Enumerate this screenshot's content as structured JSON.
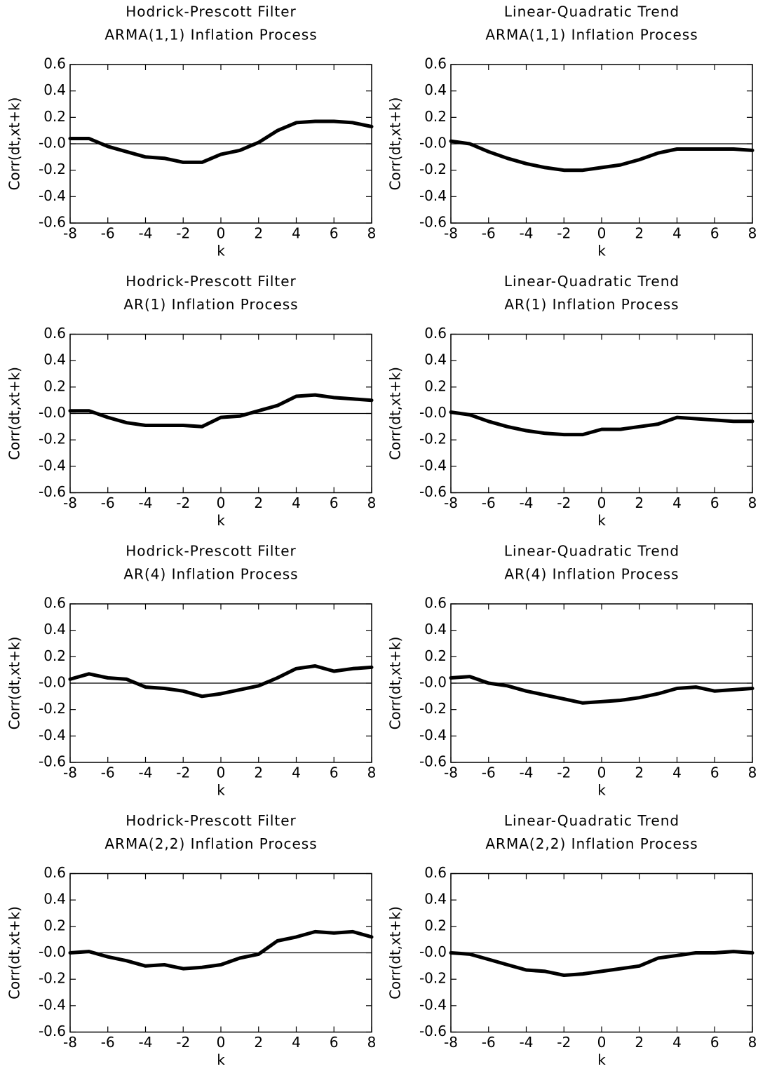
{
  "chart_data": [
    {
      "type": "line",
      "title": "Hodrick-Prescott Filter",
      "subtitle": "ARMA(1,1) Inflation Process",
      "xlabel": "k",
      "ylabel": "Corr(dt,xt+k)",
      "color": "#000000",
      "x": [
        -8,
        -7,
        -6,
        -5,
        -4,
        -3,
        -2,
        -1,
        0,
        1,
        2,
        3,
        4,
        5,
        6,
        7,
        8
      ],
      "values": [
        0.04,
        0.04,
        -0.02,
        -0.06,
        -0.1,
        -0.11,
        -0.14,
        -0.14,
        -0.08,
        -0.05,
        0.01,
        0.1,
        0.16,
        0.17,
        0.17,
        0.16,
        0.13
      ],
      "xlim": [
        -8,
        8
      ],
      "xticks": [
        -8,
        -6,
        -4,
        -2,
        0,
        2,
        4,
        6,
        8
      ],
      "ylim": [
        -0.6,
        0.6
      ],
      "yticks": [
        0.6,
        0.4,
        0.2,
        {
          "value": 0,
          "label": "-0.0"
        },
        -0.2,
        -0.4,
        -0.6
      ]
    },
    {
      "type": "line",
      "title": "Linear-Quadratic Trend",
      "subtitle": "ARMA(1,1) Inflation Process",
      "xlabel": "k",
      "ylabel": "Corr(dt,xt+k)",
      "color": "#000000",
      "x": [
        -8,
        -7,
        -6,
        -5,
        -4,
        -3,
        -2,
        -1,
        0,
        1,
        2,
        3,
        4,
        5,
        6,
        7,
        8
      ],
      "values": [
        0.02,
        0.0,
        -0.06,
        -0.11,
        -0.15,
        -0.18,
        -0.2,
        -0.2,
        -0.18,
        -0.16,
        -0.12,
        -0.07,
        -0.04,
        -0.04,
        -0.04,
        -0.04,
        -0.05
      ],
      "xlim": [
        -8,
        8
      ],
      "xticks": [
        -8,
        -6,
        -4,
        -2,
        0,
        2,
        4,
        6,
        8
      ],
      "ylim": [
        -0.6,
        0.6
      ],
      "yticks": [
        0.6,
        0.4,
        0.2,
        {
          "value": 0,
          "label": "-0.0"
        },
        -0.2,
        -0.4,
        -0.6
      ]
    },
    {
      "type": "line",
      "title": "Hodrick-Prescott Filter",
      "subtitle": "AR(1) Inflation Process",
      "xlabel": "k",
      "ylabel": "Corr(dt,xt+k)",
      "color": "#000000",
      "x": [
        -8,
        -7,
        -6,
        -5,
        -4,
        -3,
        -2,
        -1,
        0,
        1,
        2,
        3,
        4,
        5,
        6,
        7,
        8
      ],
      "values": [
        0.02,
        0.02,
        -0.03,
        -0.07,
        -0.09,
        -0.09,
        -0.09,
        -0.1,
        -0.03,
        -0.02,
        0.02,
        0.06,
        0.13,
        0.14,
        0.12,
        0.11,
        0.1
      ],
      "xlim": [
        -8,
        8
      ],
      "xticks": [
        -8,
        -6,
        -4,
        -2,
        0,
        2,
        4,
        6,
        8
      ],
      "ylim": [
        -0.6,
        0.6
      ],
      "yticks": [
        0.6,
        0.4,
        0.2,
        {
          "value": 0,
          "label": "-0.0"
        },
        -0.2,
        -0.4,
        -0.6
      ]
    },
    {
      "type": "line",
      "title": "Linear-Quadratic Trend",
      "subtitle": "AR(1) Inflation Process",
      "xlabel": "k",
      "ylabel": "Corr(dt,xt+k)",
      "color": "#000000",
      "x": [
        -8,
        -7,
        -6,
        -5,
        -4,
        -3,
        -2,
        -1,
        0,
        1,
        2,
        3,
        4,
        5,
        6,
        7,
        8
      ],
      "values": [
        0.01,
        -0.01,
        -0.06,
        -0.1,
        -0.13,
        -0.15,
        -0.16,
        -0.16,
        -0.12,
        -0.12,
        -0.1,
        -0.08,
        -0.03,
        -0.04,
        -0.05,
        -0.06,
        -0.06
      ],
      "xlim": [
        -8,
        8
      ],
      "xticks": [
        -8,
        -6,
        -4,
        -2,
        0,
        2,
        4,
        6,
        8
      ],
      "ylim": [
        -0.6,
        0.6
      ],
      "yticks": [
        0.6,
        0.4,
        0.2,
        {
          "value": 0,
          "label": "-0.0"
        },
        -0.2,
        -0.4,
        -0.6
      ]
    },
    {
      "type": "line",
      "title": "Hodrick-Prescott Filter",
      "subtitle": "AR(4) Inflation Process",
      "xlabel": "k",
      "ylabel": "Corr(dt,xt+k)",
      "color": "#000000",
      "x": [
        -8,
        -7,
        -6,
        -5,
        -4,
        -3,
        -2,
        -1,
        0,
        1,
        2,
        3,
        4,
        5,
        6,
        7,
        8
      ],
      "values": [
        0.03,
        0.07,
        0.04,
        0.03,
        -0.03,
        -0.04,
        -0.06,
        -0.1,
        -0.08,
        -0.05,
        -0.02,
        0.04,
        0.11,
        0.13,
        0.09,
        0.11,
        0.12
      ],
      "xlim": [
        -8,
        8
      ],
      "xticks": [
        -8,
        -6,
        -4,
        -2,
        0,
        2,
        4,
        6,
        8
      ],
      "ylim": [
        -0.6,
        0.6
      ],
      "yticks": [
        0.6,
        0.4,
        0.2,
        {
          "value": 0,
          "label": "-0.0"
        },
        -0.2,
        -0.4,
        -0.6
      ]
    },
    {
      "type": "line",
      "title": "Linear-Quadratic Trend",
      "subtitle": "AR(4) Inflation Process",
      "xlabel": "k",
      "ylabel": "Corr(dt,xt+k)",
      "color": "#000000",
      "x": [
        -8,
        -7,
        -6,
        -5,
        -4,
        -3,
        -2,
        -1,
        0,
        1,
        2,
        3,
        4,
        5,
        6,
        7,
        8
      ],
      "values": [
        0.04,
        0.05,
        0.0,
        -0.02,
        -0.06,
        -0.09,
        -0.12,
        -0.15,
        -0.14,
        -0.13,
        -0.11,
        -0.08,
        -0.04,
        -0.03,
        -0.06,
        -0.05,
        -0.04
      ],
      "xlim": [
        -8,
        8
      ],
      "xticks": [
        -8,
        -6,
        -4,
        -2,
        0,
        2,
        4,
        6,
        8
      ],
      "ylim": [
        -0.6,
        0.6
      ],
      "yticks": [
        0.6,
        0.4,
        0.2,
        {
          "value": 0,
          "label": "-0.0"
        },
        -0.2,
        -0.4,
        -0.6
      ]
    },
    {
      "type": "line",
      "title": "Hodrick-Prescott Filter",
      "subtitle": "ARMA(2,2) Inflation Process",
      "xlabel": "k",
      "ylabel": "Corr(dt,xt+k)",
      "color": "#000000",
      "x": [
        -8,
        -7,
        -6,
        -5,
        -4,
        -3,
        -2,
        -1,
        0,
        1,
        2,
        3,
        4,
        5,
        6,
        7,
        8
      ],
      "values": [
        0.0,
        0.01,
        -0.03,
        -0.06,
        -0.1,
        -0.09,
        -0.12,
        -0.11,
        -0.09,
        -0.04,
        -0.01,
        0.09,
        0.12,
        0.16,
        0.15,
        0.16,
        0.12
      ],
      "xlim": [
        -8,
        8
      ],
      "xticks": [
        -8,
        -6,
        -4,
        -2,
        0,
        2,
        4,
        6,
        8
      ],
      "ylim": [
        -0.6,
        0.6
      ],
      "yticks": [
        0.6,
        0.4,
        0.2,
        {
          "value": 0,
          "label": "-0.0"
        },
        -0.2,
        -0.4,
        -0.6
      ]
    },
    {
      "type": "line",
      "title": "Linear-Quadratic Trend",
      "subtitle": "ARMA(2,2) Inflation Process",
      "xlabel": "k",
      "ylabel": "Corr(dt,xt+k)",
      "color": "#000000",
      "x": [
        -8,
        -7,
        -6,
        -5,
        -4,
        -3,
        -2,
        -1,
        0,
        1,
        2,
        3,
        4,
        5,
        6,
        7,
        8
      ],
      "values": [
        0.0,
        -0.01,
        -0.05,
        -0.09,
        -0.13,
        -0.14,
        -0.17,
        -0.16,
        -0.14,
        -0.12,
        -0.1,
        -0.04,
        -0.02,
        0.0,
        0.0,
        0.01,
        0.0
      ],
      "xlim": [
        -8,
        8
      ],
      "xticks": [
        -8,
        -6,
        -4,
        -2,
        0,
        2,
        4,
        6,
        8
      ],
      "ylim": [
        -0.6,
        0.6
      ],
      "yticks": [
        0.6,
        0.4,
        0.2,
        {
          "value": 0,
          "label": "-0.0"
        },
        -0.2,
        -0.4,
        -0.6
      ]
    }
  ]
}
